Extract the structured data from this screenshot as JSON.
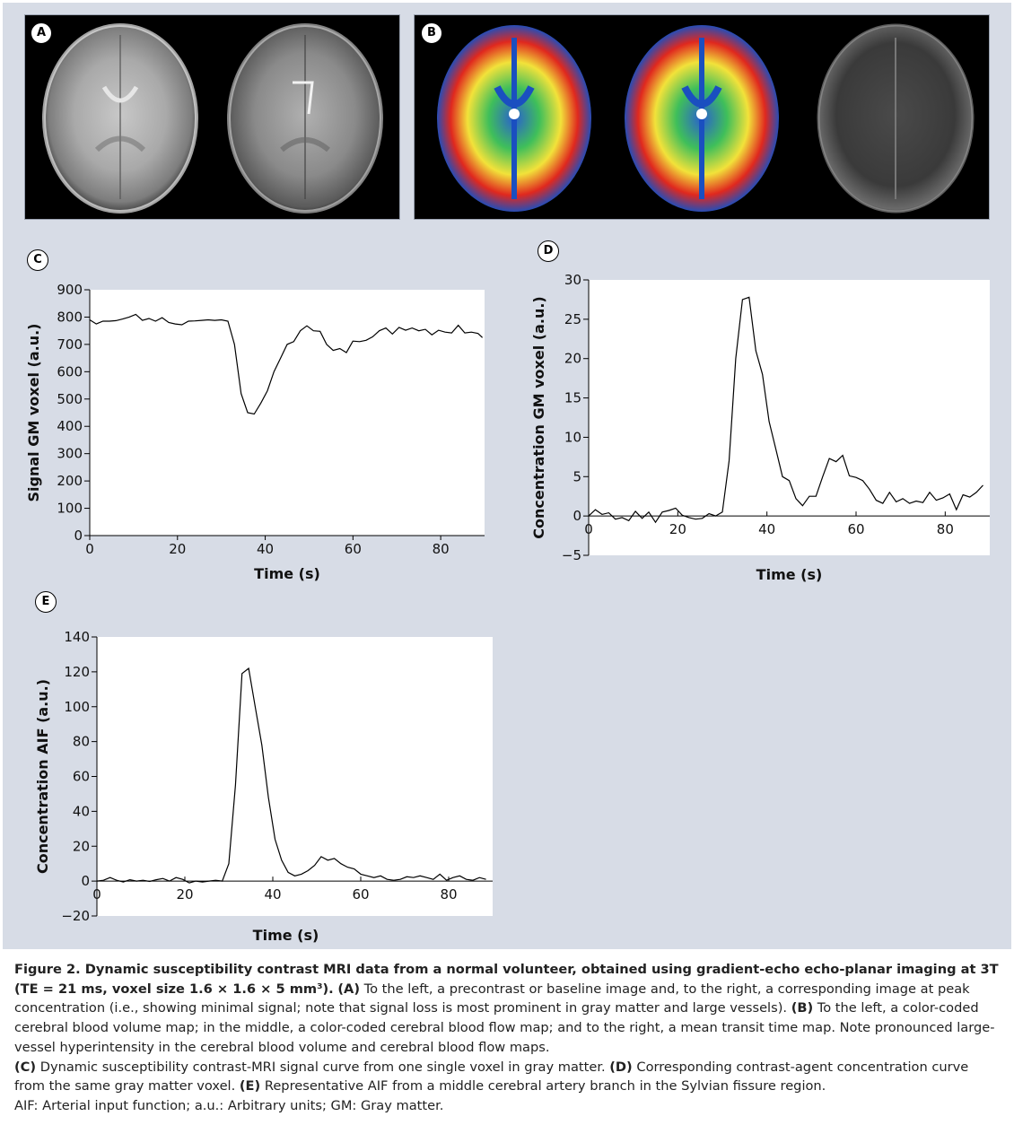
{
  "panels": {
    "A": {
      "label": "A"
    },
    "B": {
      "label": "B"
    },
    "C": {
      "label": "C"
    },
    "D": {
      "label": "D"
    },
    "E": {
      "label": "E"
    }
  },
  "chart_data": [
    {
      "panel": "C",
      "type": "line",
      "xlabel": "Time (s)",
      "ylabel": "Signal GM voxel (a.u.)",
      "xlim": [
        0,
        90
      ],
      "ylim": [
        0,
        900
      ],
      "xticks": [
        "0",
        "20",
        "40",
        "60",
        "80"
      ],
      "yticks": [
        "0",
        "100",
        "200",
        "300",
        "400",
        "500",
        "600",
        "700",
        "800",
        "900"
      ],
      "x": [
        0,
        1.5,
        3,
        4.5,
        6,
        7.5,
        9,
        10.5,
        12,
        13.5,
        15,
        16.5,
        18,
        19.5,
        21,
        22.5,
        24,
        25.5,
        27,
        28.5,
        30,
        31.5,
        33,
        34.5,
        36,
        37.5,
        39,
        40.5,
        42,
        43.5,
        45,
        46.5,
        48,
        49.5,
        51,
        52.5,
        54,
        55.5,
        57,
        58.5,
        60,
        61.5,
        63,
        64.5,
        66,
        67.5,
        69,
        70.5,
        72,
        73.5,
        75,
        76.5,
        78,
        79.5,
        81,
        82.5,
        84,
        85.5,
        87,
        88.5,
        89.5
      ],
      "y": [
        790,
        775,
        785,
        785,
        787,
        793,
        800,
        810,
        788,
        795,
        785,
        798,
        780,
        775,
        772,
        785,
        786,
        788,
        790,
        788,
        790,
        785,
        700,
        520,
        450,
        445,
        485,
        530,
        600,
        650,
        700,
        710,
        750,
        768,
        750,
        748,
        700,
        678,
        685,
        670,
        712,
        710,
        715,
        728,
        750,
        760,
        738,
        762,
        752,
        760,
        750,
        755,
        735,
        752,
        745,
        742,
        770,
        742,
        745,
        740,
        725
      ]
    },
    {
      "panel": "D",
      "type": "line",
      "xlabel": "Time (s)",
      "ylabel": "Concentration GM voxel (a.u.)",
      "xlim": [
        0,
        90
      ],
      "ylim": [
        -5,
        30
      ],
      "xticks": [
        "0",
        "20",
        "40",
        "60",
        "80"
      ],
      "yticks": [
        "−5",
        "0",
        "5",
        "10",
        "15",
        "20",
        "25",
        "30"
      ],
      "x": [
        0,
        1.5,
        3,
        4.5,
        6,
        7.5,
        9,
        10.5,
        12,
        13.5,
        15,
        16.5,
        18,
        19.5,
        21,
        22.5,
        24,
        25.5,
        27,
        28.5,
        30,
        31.5,
        33,
        34.5,
        36,
        37.5,
        39,
        40.5,
        42,
        43.5,
        45,
        46.5,
        48,
        49.5,
        51,
        52.5,
        54,
        55.5,
        57,
        58.5,
        60,
        61.5,
        63,
        64.5,
        66,
        67.5,
        69,
        70.5,
        72,
        73.5,
        75,
        76.5,
        78,
        79.5,
        81,
        82.5,
        84,
        85.5,
        87,
        88.5
      ],
      "y": [
        0,
        0.8,
        0.2,
        0.4,
        -0.4,
        -0.2,
        -0.6,
        0.6,
        -0.3,
        0.5,
        -0.8,
        0.5,
        0.7,
        1.0,
        0.1,
        -0.2,
        -0.4,
        -0.3,
        0.3,
        0.0,
        0.5,
        7.0,
        20.0,
        27.5,
        27.8,
        21.0,
        18.0,
        12.0,
        8.5,
        5.0,
        4.5,
        2.2,
        1.3,
        2.5,
        2.5,
        5.0,
        7.3,
        6.9,
        7.7,
        5.1,
        4.9,
        4.5,
        3.4,
        2.0,
        1.6,
        3.0,
        1.8,
        2.2,
        1.6,
        1.9,
        1.7,
        3.0,
        2.0,
        2.3,
        2.8,
        0.8,
        2.7,
        2.4,
        3.0,
        3.9
      ]
    },
    {
      "panel": "E",
      "type": "line",
      "xlabel": "Time (s)",
      "ylabel": "Concentration AIF (a.u.)",
      "xlim": [
        0,
        90
      ],
      "ylim": [
        -20,
        140
      ],
      "xticks": [
        "0",
        "20",
        "40",
        "60",
        "80"
      ],
      "yticks": [
        "−20",
        "0",
        "20",
        "40",
        "60",
        "80",
        "100",
        "120",
        "140"
      ],
      "x": [
        0,
        1.5,
        3,
        4.5,
        6,
        7.5,
        9,
        10.5,
        12,
        13.5,
        15,
        16.5,
        18,
        19.5,
        21,
        22.5,
        24,
        25.5,
        27,
        28.5,
        30,
        31.5,
        33,
        34.5,
        36,
        37.5,
        39,
        40.5,
        42,
        43.5,
        45,
        46.5,
        48,
        49.5,
        51,
        52.5,
        54,
        55.5,
        57,
        58.5,
        60,
        61.5,
        63,
        64.5,
        66,
        67.5,
        69,
        70.5,
        72,
        73.5,
        75,
        76.5,
        78,
        79.5,
        81,
        82.5,
        84,
        85.5,
        87,
        88.5
      ],
      "y": [
        0,
        0.5,
        2,
        0.5,
        -0.5,
        0.8,
        0,
        0.5,
        -0.2,
        0.8,
        1.5,
        0,
        2,
        1,
        -1,
        0,
        -0.5,
        0,
        0.5,
        0,
        10,
        55,
        119,
        122,
        100,
        78,
        48,
        24,
        12,
        5,
        3,
        4,
        6,
        9,
        14,
        12,
        13,
        10,
        8,
        7,
        4,
        3,
        2,
        3,
        1,
        0.5,
        1,
        2.5,
        2,
        3,
        2,
        1,
        4,
        0.5,
        2,
        3,
        1,
        0.5,
        2,
        1
      ]
    }
  ],
  "caption": {
    "bold_title": "Figure 2. Dynamic susceptibility contrast MRI data from a normal volunteer, obtained using gradient-echo echo-planar imaging at 3T (TE = 21 ms, voxel size 1.6 × 1.6 × 5 mm³).",
    "a_label": "(A)",
    "a_text": "To the left, a precontrast or baseline image and, to the right, a corresponding image at peak concentration (i.e., showing minimal signal; note that signal loss is most prominent in gray matter and large vessels).",
    "b_label": "(B)",
    "b_text": "To the left, a color-coded cerebral blood volume map; in the middle, a color-coded cerebral blood flow map; and to the right, a mean transit time map. Note pronounced large-vessel hyperintensity in the cerebral blood volume and cerebral blood flow maps.",
    "c_label": "(C)",
    "c_text": "Dynamic susceptibility contrast-MRI signal curve from one single voxel in gray matter.",
    "d_label": "(D)",
    "d_text": "Corresponding contrast-agent concentration curve from the same gray matter voxel.",
    "e_label": "(E)",
    "e_text": "Representative AIF from a middle cerebral artery branch in the Sylvian fissure region.",
    "abbreviations": "AIF: Arterial input function; a.u.: Arbitrary units; GM: Gray matter."
  },
  "colors": {
    "figure_background": "#d7dce6",
    "plot_background": "#ffffff",
    "line": "#000000",
    "perfusion_blue": "#1a4fc0",
    "perfusion_green": "#3fbf3f",
    "perfusion_yellow": "#f2e23a",
    "perfusion_red": "#e0281e"
  }
}
